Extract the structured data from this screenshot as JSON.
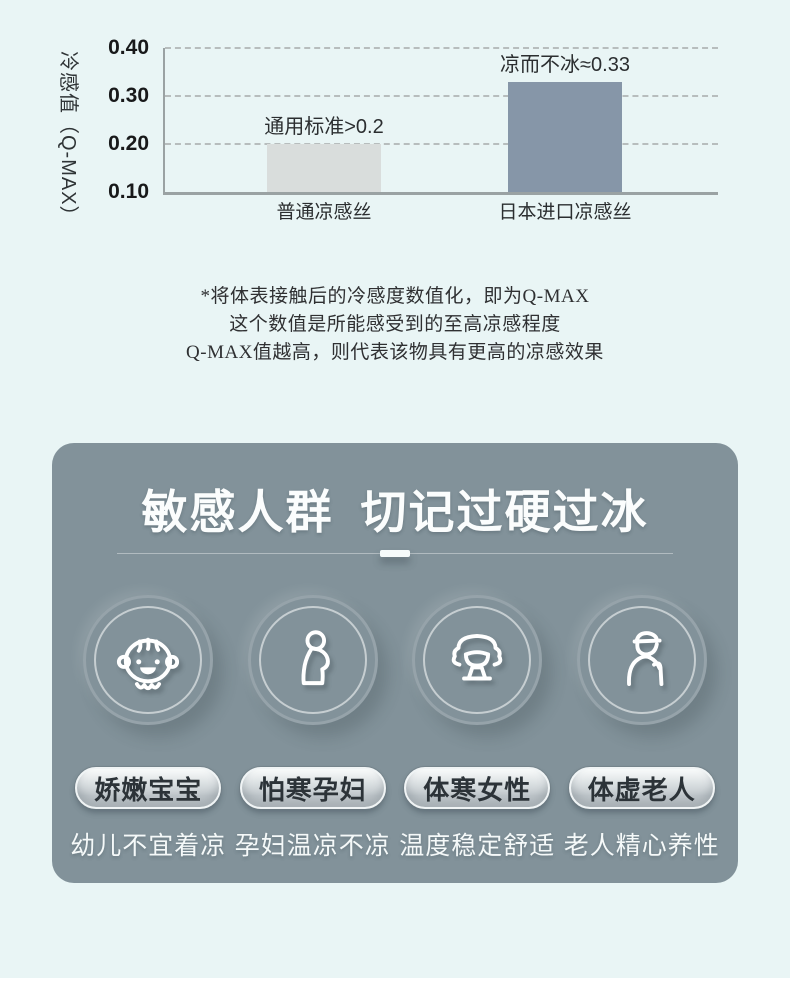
{
  "page": {
    "background": "#e9f5f5"
  },
  "chart_data": {
    "type": "bar",
    "title": "",
    "ylabel": "冷感值（Q-MAX）",
    "xlabel": "",
    "ylim": [
      0.1,
      0.4
    ],
    "yticks": [
      0.4,
      0.3,
      0.2,
      0.1
    ],
    "ytick_labels": [
      "0.40",
      "0.30",
      "0.20",
      "0.10"
    ],
    "gridlines": [
      0.4,
      0.3,
      0.2
    ],
    "grid_style": "dashed",
    "legend": "none",
    "categories": [
      "普通凉感丝",
      "日本进口凉感丝"
    ],
    "values": [
      0.2,
      0.33
    ],
    "annotations": [
      "通用标准>0.2",
      "凉而不冰≈0.33"
    ],
    "bar_colors": [
      "#d9dddc",
      "#8696a8"
    ],
    "axis_color": "#9aa2a3"
  },
  "note": {
    "lines": [
      "*将体表接触后的冷感度数值化，即为Q-MAX",
      "这个数值是所能感受到的至高凉感程度",
      "Q-MAX值越高，则代表该物具有更高的凉感效果"
    ]
  },
  "card": {
    "background": "#82929a",
    "title": "敏感人群  切记过硬过冰",
    "groups": [
      {
        "icon": "baby-icon",
        "pill": "娇嫩宝宝",
        "caption": "幼儿不宜着凉"
      },
      {
        "icon": "pregnant-woman-icon",
        "pill": "怕寒孕妇",
        "caption": "孕妇温凉不凉"
      },
      {
        "icon": "woman-icon",
        "pill": "体寒女性",
        "caption": "温度稳定舒适"
      },
      {
        "icon": "elderly-man-icon",
        "pill": "体虚老人",
        "caption": "老人精心养性"
      }
    ]
  }
}
